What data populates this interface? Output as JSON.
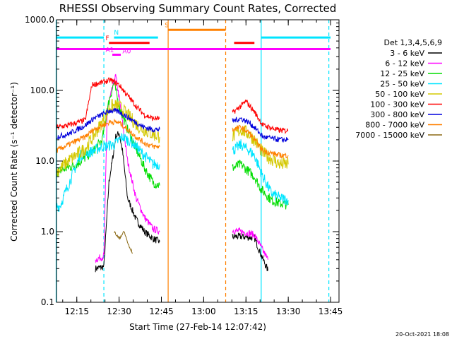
{
  "chart_data": {
    "type": "line",
    "title": "RHESSI Observing Summary Count Rates, Corrected",
    "xlabel": "Start Time (27-Feb-14 12:07:42)",
    "ylabel": "Corrected Count Rate (s⁻¹ detector⁻¹)",
    "y_scale": "log",
    "ylim": [
      0.1,
      1000
    ],
    "xlim_minutes": [
      12.13,
      13.8
    ],
    "x_tick_labels": [
      "12:15",
      "12:30",
      "12:45",
      "13:00",
      "13:15",
      "13:30",
      "13:45"
    ],
    "y_tick_labels": [
      "0.1",
      "1.0",
      "10.0",
      "100.0",
      "1000.0"
    ],
    "footer_date": "20-Oct-2021 18:08",
    "legend": {
      "title": "Det 1,3,4,5,6,9",
      "placement": "right",
      "entries": [
        {
          "label": "3 - 6 keV",
          "color": "#000000"
        },
        {
          "label": "6 - 12 keV",
          "color": "#ff00ff"
        },
        {
          "label": "12 - 25 keV",
          "color": "#00dd00"
        },
        {
          "label": "25 - 50 keV",
          "color": "#00e5ff"
        },
        {
          "label": "50 - 100 keV",
          "color": "#d4c800"
        },
        {
          "label": "100 - 300 keV",
          "color": "#ff0000"
        },
        {
          "label": "300 - 800 keV",
          "color": "#0000dd"
        },
        {
          "label": "800 - 7000 keV",
          "color": "#ff8000"
        },
        {
          "label": "7000 - 15000 keV",
          "color": "#8b6914"
        }
      ]
    },
    "segment_breaks": [
      12.745,
      13.1
    ],
    "vertical_markers": [
      {
        "t": 12.128,
        "color": "#00e5ff",
        "dashed": false
      },
      {
        "t": 12.41,
        "color": "#00e5ff",
        "dashed": true
      },
      {
        "t": 12.79,
        "color": "#ff8000",
        "dashed": false
      },
      {
        "t": 13.13,
        "color": "#ff8000",
        "dashed": true
      },
      {
        "t": 13.34,
        "color": "#00e5ff",
        "dashed": false
      },
      {
        "t": 13.74,
        "color": "#00e5ff",
        "dashed": true
      }
    ],
    "flag_bars": [
      {
        "label": "N",
        "color": "#00e5ff",
        "y": 560,
        "segments": [
          [
            12.13,
            12.41
          ],
          [
            12.47,
            12.73
          ],
          [
            13.34,
            13.75
          ]
        ],
        "label_at": 12.47
      },
      {
        "label": "S",
        "color": "#ff8000",
        "y": 720,
        "segments": [
          [
            12.79,
            13.13
          ]
        ],
        "label_at": 12.77
      },
      {
        "label": "F",
        "color": "#ff0000",
        "y": 470,
        "segments": [
          [
            12.44,
            12.68
          ],
          [
            13.18,
            13.3
          ]
        ],
        "label_at": 12.42
      },
      {
        "label": "",
        "color": "#ff00ff",
        "y": 385,
        "segments": [
          [
            12.13,
            13.75
          ]
        ],
        "label_at": null
      },
      {
        "label": "A0",
        "color": "#ff00ff",
        "y": 305,
        "segments": [],
        "label_at": 12.52
      },
      {
        "label": "A1",
        "color": "#ff00ff",
        "y": 320,
        "segments": [
          [
            12.46,
            12.51
          ]
        ],
        "label_at": 12.42
      }
    ],
    "series": [
      {
        "name": "3 - 6 keV",
        "color": "#000000",
        "noise": 0.05,
        "points": [
          [
            12.36,
            0.3
          ],
          [
            12.41,
            0.32
          ],
          [
            12.44,
            5
          ],
          [
            12.465,
            12
          ],
          [
            12.48,
            22
          ],
          [
            12.5,
            25
          ],
          [
            12.52,
            14
          ],
          [
            12.55,
            3
          ],
          [
            12.6,
            1.5
          ],
          [
            12.65,
            1.0
          ],
          [
            12.7,
            0.8
          ],
          [
            12.74,
            0.72
          ],
          [
            13.17,
            0.85
          ],
          [
            13.22,
            0.85
          ],
          [
            13.27,
            0.83
          ],
          [
            13.3,
            0.82
          ],
          [
            13.335,
            0.5
          ],
          [
            13.38,
            0.28
          ]
        ]
      },
      {
        "name": "6 - 12 keV",
        "color": "#ff00ff",
        "noise": 0.05,
        "points": [
          [
            12.36,
            0.4
          ],
          [
            12.41,
            0.45
          ],
          [
            12.43,
            55
          ],
          [
            12.46,
            105
          ],
          [
            12.48,
            160
          ],
          [
            12.5,
            80
          ],
          [
            12.55,
            10
          ],
          [
            12.6,
            3
          ],
          [
            12.65,
            1.6
          ],
          [
            12.7,
            1.1
          ],
          [
            12.74,
            1.0
          ],
          [
            13.17,
            1.05
          ],
          [
            13.22,
            1.0
          ],
          [
            13.27,
            0.95
          ],
          [
            13.3,
            0.9
          ],
          [
            13.34,
            0.6
          ],
          [
            13.38,
            0.4
          ]
        ]
      },
      {
        "name": "12 - 25 keV",
        "color": "#00dd00",
        "noise": 0.07,
        "points": [
          [
            12.13,
            7
          ],
          [
            12.25,
            9
          ],
          [
            12.35,
            14
          ],
          [
            12.4,
            20
          ],
          [
            12.44,
            70
          ],
          [
            12.47,
            130
          ],
          [
            12.5,
            60
          ],
          [
            12.55,
            28
          ],
          [
            12.6,
            15
          ],
          [
            12.65,
            8
          ],
          [
            12.7,
            5
          ],
          [
            12.74,
            4.5
          ],
          [
            13.17,
            8
          ],
          [
            13.22,
            9
          ],
          [
            13.27,
            7
          ],
          [
            13.3,
            6
          ],
          [
            13.34,
            4
          ],
          [
            13.4,
            2.8
          ],
          [
            13.45,
            2.5
          ],
          [
            13.5,
            2.4
          ]
        ]
      },
      {
        "name": "25 - 50 keV",
        "color": "#00e5ff",
        "noise": 0.08,
        "points": [
          [
            12.13,
            2.3
          ],
          [
            12.15,
            2.3
          ],
          [
            12.27,
            12
          ],
          [
            12.35,
            14
          ],
          [
            12.4,
            16
          ],
          [
            12.47,
            17
          ],
          [
            12.52,
            22
          ],
          [
            12.58,
            18
          ],
          [
            12.65,
            12
          ],
          [
            12.7,
            9
          ],
          [
            12.74,
            9
          ],
          [
            13.17,
            14
          ],
          [
            13.22,
            17
          ],
          [
            13.27,
            14
          ],
          [
            13.3,
            12
          ],
          [
            13.35,
            6
          ],
          [
            13.4,
            3.5
          ],
          [
            13.45,
            3
          ],
          [
            13.5,
            2.8
          ]
        ]
      },
      {
        "name": "50 - 100 keV",
        "color": "#d4c800",
        "noise": 0.1,
        "points": [
          [
            12.13,
            7
          ],
          [
            12.2,
            10
          ],
          [
            12.3,
            15
          ],
          [
            12.4,
            35
          ],
          [
            12.45,
            60
          ],
          [
            12.5,
            60
          ],
          [
            12.55,
            45
          ],
          [
            12.62,
            30
          ],
          [
            12.7,
            24
          ],
          [
            12.74,
            22
          ],
          [
            13.17,
            22
          ],
          [
            13.22,
            28
          ],
          [
            13.27,
            24
          ],
          [
            13.3,
            20
          ],
          [
            13.35,
            13
          ],
          [
            13.45,
            9
          ],
          [
            13.5,
            9
          ]
        ]
      },
      {
        "name": "100 - 300 keV",
        "color": "#ff0000",
        "noise": 0.04,
        "points": [
          [
            12.13,
            30
          ],
          [
            12.2,
            32
          ],
          [
            12.3,
            38
          ],
          [
            12.34,
            120
          ],
          [
            12.4,
            130
          ],
          [
            12.45,
            140
          ],
          [
            12.5,
            120
          ],
          [
            12.55,
            85
          ],
          [
            12.6,
            60
          ],
          [
            12.65,
            45
          ],
          [
            12.7,
            40
          ],
          [
            12.74,
            40
          ],
          [
            13.17,
            48
          ],
          [
            13.22,
            60
          ],
          [
            13.25,
            70
          ],
          [
            13.3,
            50
          ],
          [
            13.35,
            32
          ],
          [
            13.45,
            27
          ],
          [
            13.5,
            27
          ]
        ]
      },
      {
        "name": "300 - 800 keV",
        "color": "#0000dd",
        "noise": 0.04,
        "points": [
          [
            12.13,
            22
          ],
          [
            12.2,
            24
          ],
          [
            12.3,
            32
          ],
          [
            12.35,
            40
          ],
          [
            12.45,
            52
          ],
          [
            12.5,
            50
          ],
          [
            12.55,
            42
          ],
          [
            12.6,
            35
          ],
          [
            12.65,
            30
          ],
          [
            12.7,
            28
          ],
          [
            12.74,
            28
          ],
          [
            13.17,
            37
          ],
          [
            13.22,
            40
          ],
          [
            13.27,
            35
          ],
          [
            13.3,
            30
          ],
          [
            13.35,
            22
          ],
          [
            13.45,
            20
          ],
          [
            13.5,
            20
          ]
        ]
      },
      {
        "name": "800 - 7000 keV",
        "color": "#ff8000",
        "noise": 0.04,
        "points": [
          [
            12.13,
            14
          ],
          [
            12.2,
            17
          ],
          [
            12.3,
            22
          ],
          [
            12.35,
            28
          ],
          [
            12.45,
            36
          ],
          [
            12.5,
            35
          ],
          [
            12.55,
            28
          ],
          [
            12.6,
            22
          ],
          [
            12.65,
            18
          ],
          [
            12.7,
            16
          ],
          [
            12.74,
            16
          ],
          [
            13.17,
            28
          ],
          [
            13.22,
            30
          ],
          [
            13.27,
            25
          ],
          [
            13.3,
            20
          ],
          [
            13.35,
            14
          ],
          [
            13.45,
            12
          ],
          [
            13.5,
            12
          ]
        ]
      },
      {
        "name": "7000 - 15000 keV",
        "color": "#8b6914",
        "noise": 0.02,
        "points": [
          [
            12.47,
            1.0
          ],
          [
            12.5,
            0.8
          ],
          [
            12.53,
            1.0
          ],
          [
            12.56,
            0.6
          ],
          [
            12.58,
            0.5
          ]
        ]
      }
    ]
  }
}
